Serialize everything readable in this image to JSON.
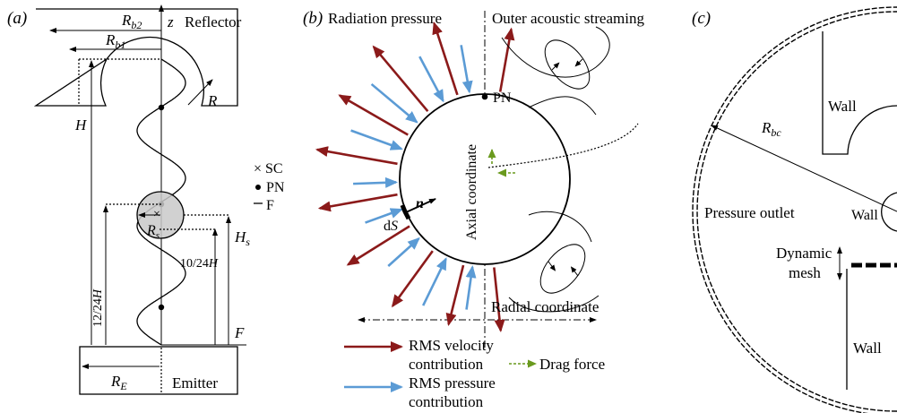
{
  "panel_a": {
    "label": "(a)",
    "reflector": "Reflector",
    "emitter": "Emitter",
    "z": "z",
    "R_b2": "R",
    "R_b2_sub": "b2",
    "R_b1": "R",
    "R_b1_sub": "b1",
    "R": "R",
    "H": "H",
    "H_s": "H",
    "H_s_sub": "s",
    "R_s": "R",
    "R_s_sub": "s",
    "R_E": "R",
    "R_E_sub": "E",
    "F": "F",
    "frac_10": "10/24",
    "frac_12": "12/24",
    "frac_H": "H",
    "legend": [
      {
        "symbol": "×",
        "label": "SC"
      },
      {
        "symbol": "•",
        "label": "PN"
      },
      {
        "symbol": "—",
        "label": "F"
      }
    ]
  },
  "panel_b": {
    "label": "(b)",
    "radiation_pressure": "Radiation pressure",
    "outer_streaming": "Outer acoustic streaming",
    "pn": "PN",
    "axial": "Axial coordinate",
    "radial": "Radial coordinate",
    "n": "n",
    "ds": "d",
    "ds_it": "S",
    "legend_velocity_1": "RMS velocity",
    "legend_velocity_2": "contribution",
    "legend_drag": "Drag force",
    "legend_pressure_1": "RMS pressure",
    "legend_pressure_2": "contribution",
    "colors": {
      "velocity": "#8b1a1a",
      "pressure": "#5b9bd5",
      "drag": "#6a9a1e"
    }
  },
  "panel_c": {
    "label": "(c)",
    "wall_top": "Wall",
    "wall_mid": "Wall",
    "wall_bottom": "Wall",
    "pressure_outlet": "Pressure outlet",
    "dynamic": "Dynamic",
    "mesh": "mesh",
    "R_bc": "R",
    "R_bc_sub": "bc"
  }
}
